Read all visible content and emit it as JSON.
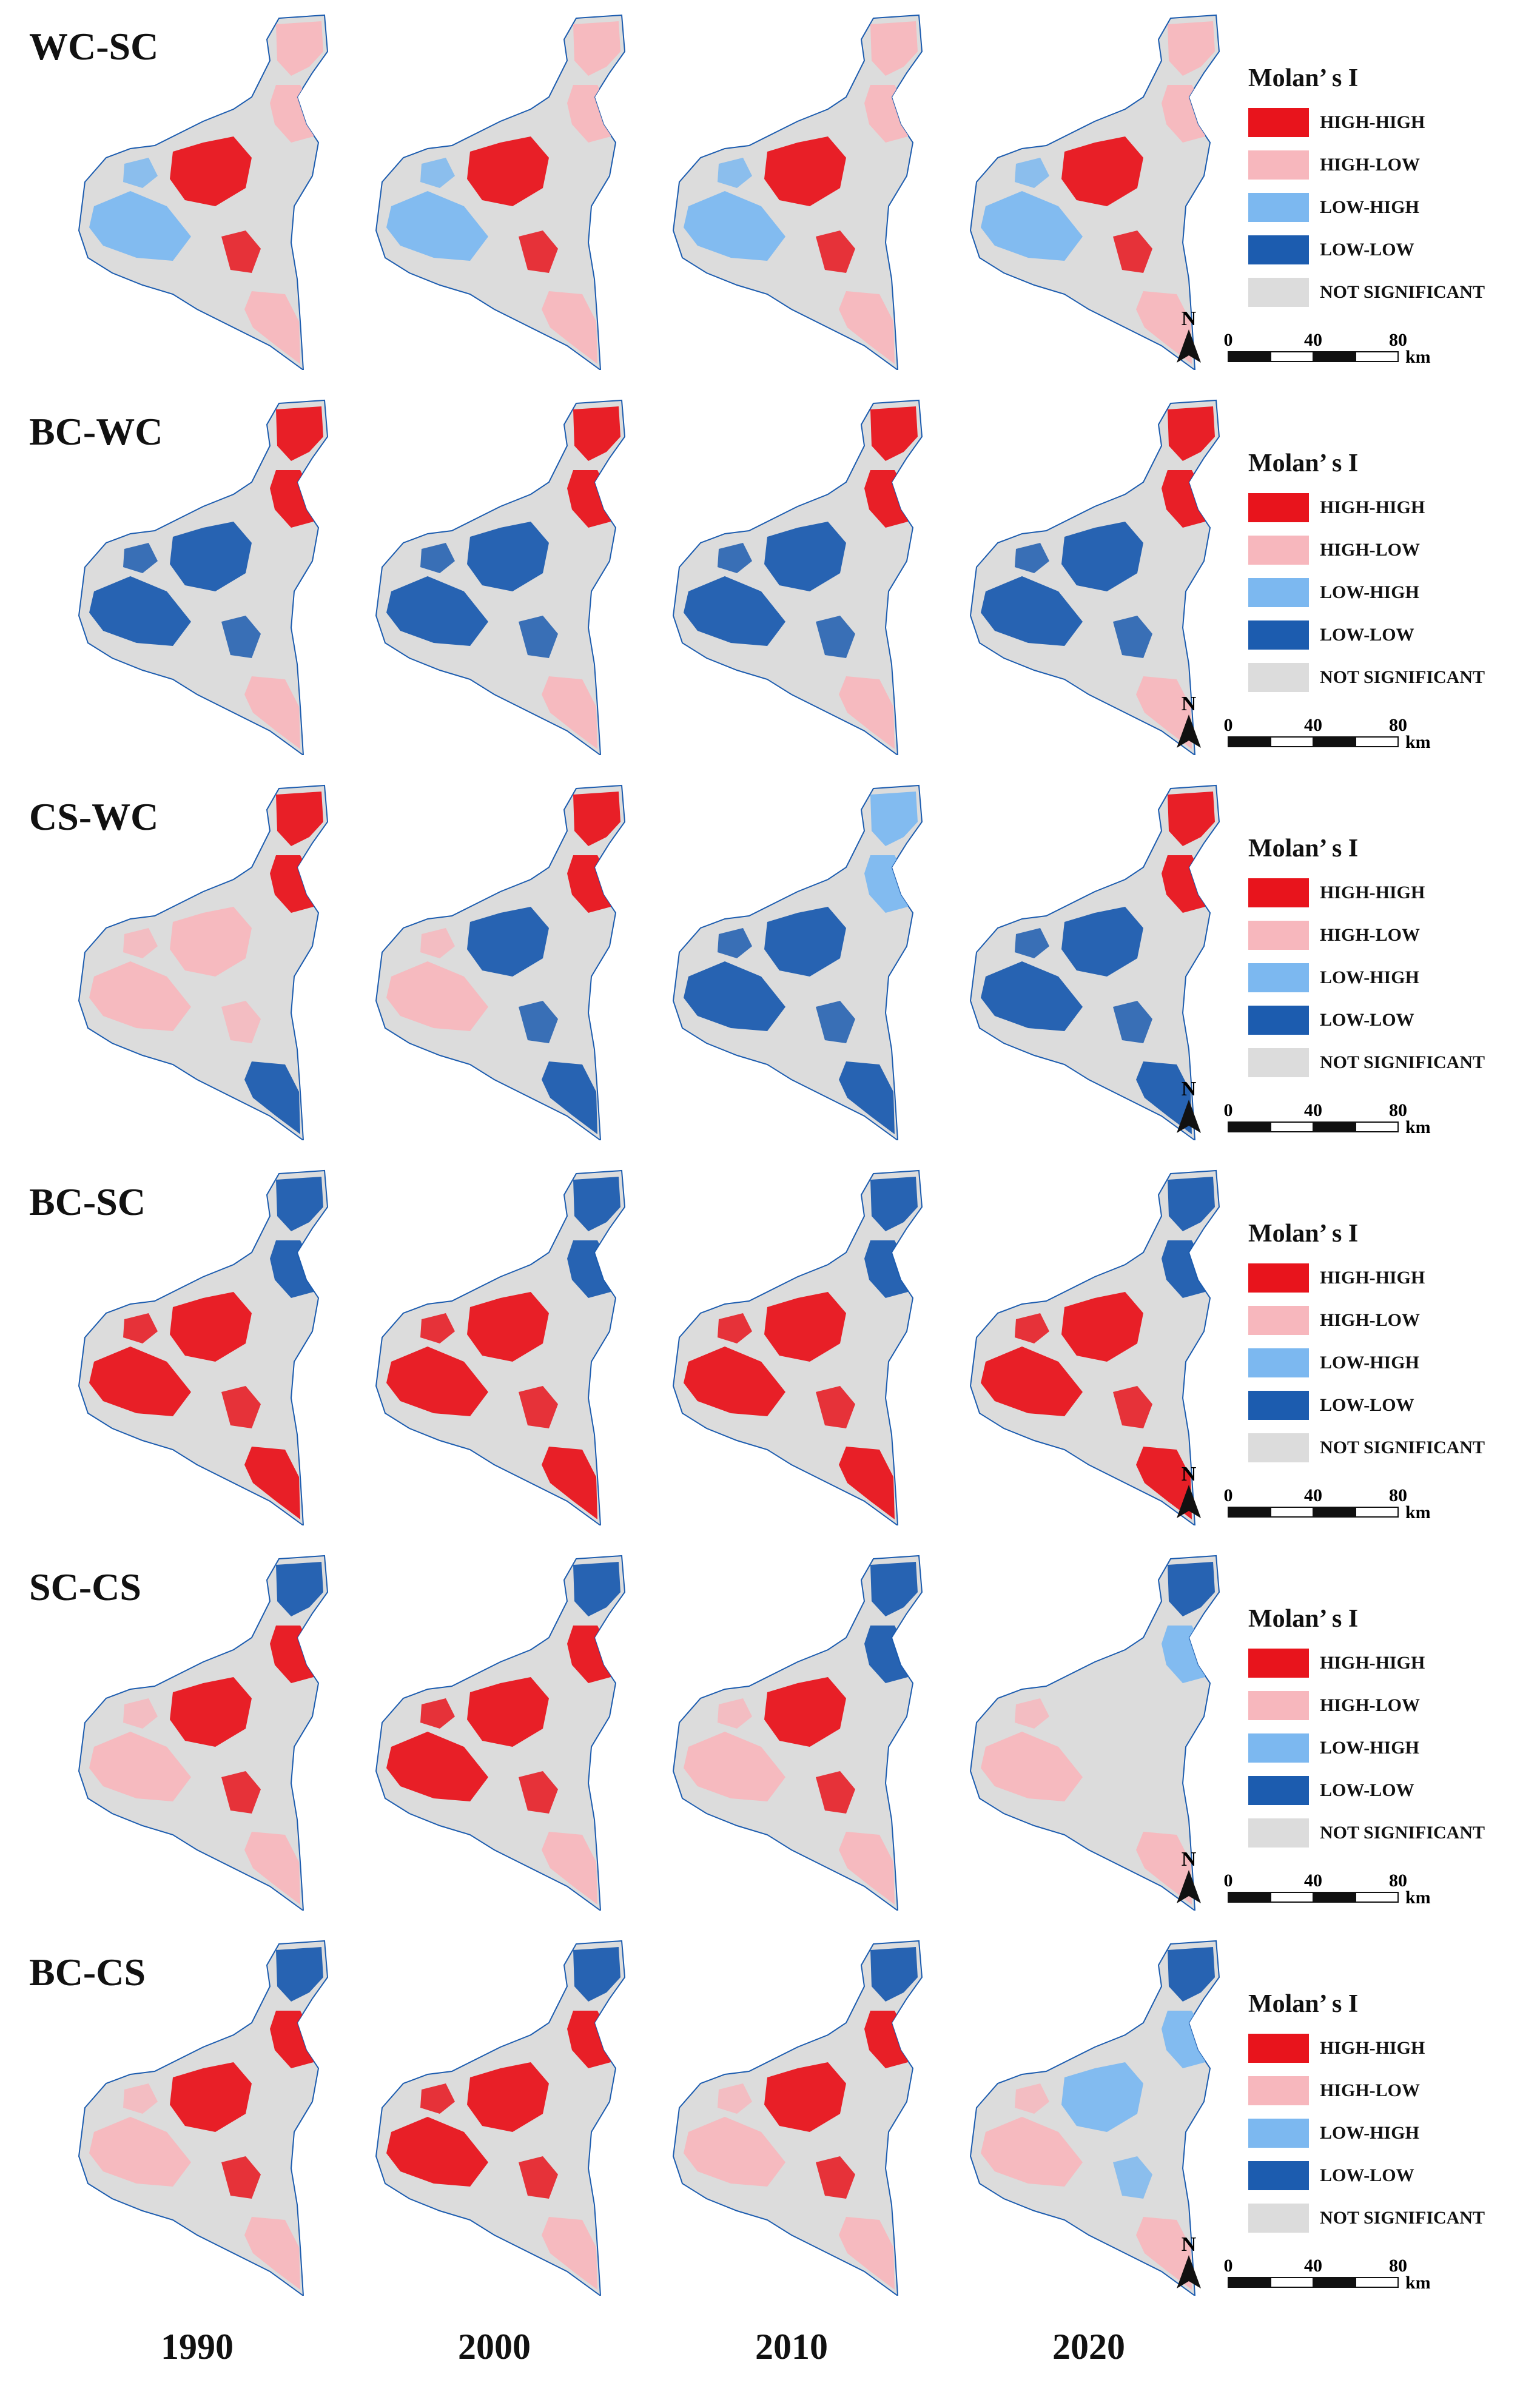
{
  "colors": {
    "high_high": "#e8141c",
    "high_low": "#f7b7bd",
    "low_high": "#7cb8f0",
    "low_low": "#1c5caf",
    "not_significant": "#dcdcdc"
  },
  "legend": {
    "title": "Molan’ s I",
    "items": [
      {
        "label": "HIGH-HIGH",
        "color_key": "high_high"
      },
      {
        "label": "HIGH-LOW",
        "color_key": "high_low"
      },
      {
        "label": "LOW-HIGH",
        "color_key": "low_high"
      },
      {
        "label": "LOW-LOW",
        "color_key": "low_low"
      },
      {
        "label": "NOT SIGNIFICANT",
        "color_key": "not_significant"
      }
    ]
  },
  "north_label": "N",
  "scale_bar": {
    "ticks": [
      "0",
      "40",
      "80"
    ],
    "unit": "km"
  },
  "years": [
    "1990",
    "2000",
    "2010",
    "2020"
  ],
  "rows": [
    {
      "title": "WC-SC",
      "maps": [
        {
          "north": "high_low",
          "mid": "high_low",
          "center": "high_high",
          "southwest": "low_high",
          "south": "high_low"
        },
        {
          "north": "high_low",
          "mid": "high_low",
          "center": "high_high",
          "southwest": "low_high",
          "south": "high_low"
        },
        {
          "north": "high_low",
          "mid": "high_low",
          "center": "high_high",
          "southwest": "low_high",
          "south": "high_low"
        },
        {
          "north": "high_low",
          "mid": "high_low",
          "center": "high_high",
          "southwest": "low_high",
          "south": "high_low"
        }
      ]
    },
    {
      "title": "BC-WC",
      "maps": [
        {
          "north": "high_high",
          "mid": "high_high",
          "center": "low_low",
          "southwest": "low_low",
          "south": "high_low"
        },
        {
          "north": "high_high",
          "mid": "high_high",
          "center": "low_low",
          "southwest": "low_low",
          "south": "high_low"
        },
        {
          "north": "high_high",
          "mid": "high_high",
          "center": "low_low",
          "southwest": "low_low",
          "south": "high_low"
        },
        {
          "north": "high_high",
          "mid": "high_high",
          "center": "low_low",
          "southwest": "low_low",
          "south": "high_low"
        }
      ]
    },
    {
      "title": "CS-WC",
      "maps": [
        {
          "north": "high_high",
          "mid": "high_high",
          "center": "high_low",
          "southwest": "high_low",
          "south": "low_low"
        },
        {
          "north": "high_high",
          "mid": "high_high",
          "center": "low_low",
          "southwest": "high_low",
          "south": "low_low"
        },
        {
          "north": "low_high",
          "mid": "low_high",
          "center": "low_low",
          "southwest": "low_low",
          "south": "low_low"
        },
        {
          "north": "high_high",
          "mid": "high_high",
          "center": "low_low",
          "southwest": "low_low",
          "south": "low_low"
        }
      ]
    },
    {
      "title": "BC-SC",
      "maps": [
        {
          "north": "low_low",
          "mid": "low_low",
          "center": "high_high",
          "southwest": "high_high",
          "south": "high_high"
        },
        {
          "north": "low_low",
          "mid": "low_low",
          "center": "high_high",
          "southwest": "high_high",
          "south": "high_high"
        },
        {
          "north": "low_low",
          "mid": "low_low",
          "center": "high_high",
          "southwest": "high_high",
          "south": "high_high"
        },
        {
          "north": "low_low",
          "mid": "low_low",
          "center": "high_high",
          "southwest": "high_high",
          "south": "high_high"
        }
      ]
    },
    {
      "title": "SC-CS",
      "maps": [
        {
          "north": "low_low",
          "mid": "high_high",
          "center": "high_high",
          "southwest": "high_low",
          "south": "high_low"
        },
        {
          "north": "low_low",
          "mid": "high_high",
          "center": "high_high",
          "southwest": "high_high",
          "south": "high_low"
        },
        {
          "north": "low_low",
          "mid": "low_low",
          "center": "high_high",
          "southwest": "high_low",
          "south": "high_low"
        },
        {
          "north": "low_low",
          "mid": "low_high",
          "center": "not_significant",
          "southwest": "high_low",
          "south": "high_low"
        }
      ]
    },
    {
      "title": "BC-CS",
      "maps": [
        {
          "north": "low_low",
          "mid": "high_high",
          "center": "high_high",
          "southwest": "high_low",
          "south": "high_low"
        },
        {
          "north": "low_low",
          "mid": "high_high",
          "center": "high_high",
          "southwest": "high_high",
          "south": "high_low"
        },
        {
          "north": "low_low",
          "mid": "high_high",
          "center": "high_high",
          "southwest": "high_low",
          "south": "high_low"
        },
        {
          "north": "low_low",
          "mid": "low_high",
          "center": "low_high",
          "southwest": "high_low",
          "south": "high_low"
        }
      ]
    }
  ]
}
